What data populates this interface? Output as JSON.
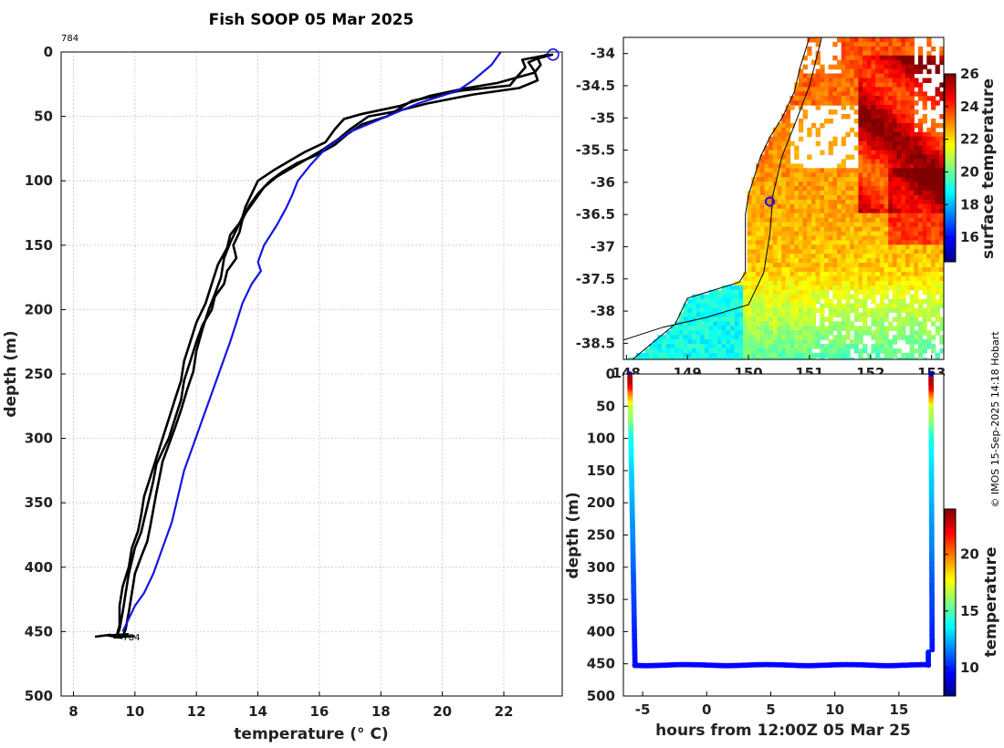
{
  "title": "Fish SOOP 05 Mar 2025",
  "copyright": "© IMOS 15-Sep-2025 14:18 Hobart",
  "colors": {
    "profile": "#000000",
    "climatology": "#1414e6",
    "marker": "#1414e6"
  },
  "chart_data": [
    {
      "id": "profile",
      "type": "line",
      "title": "Fish SOOP 05 Mar 2025",
      "xlabel": "temperature (° C)",
      "ylabel": "depth (m)",
      "xlim": [
        7.6,
        23.9
      ],
      "ylim": [
        500,
        0
      ],
      "xticks": [
        8,
        10,
        12,
        14,
        16,
        18,
        20,
        22
      ],
      "yticks": [
        0,
        50,
        100,
        150,
        200,
        250,
        300,
        350,
        400,
        450,
        500
      ],
      "cruise_label": "784",
      "end_label": "784",
      "surface_marker": {
        "temp": 23.6,
        "depth": 2
      },
      "series": [
        {
          "name": "profile-1",
          "color": "#000000",
          "points": [
            [
              23.5,
              2
            ],
            [
              22.6,
              6
            ],
            [
              22.7,
              12
            ],
            [
              22.4,
              20
            ],
            [
              22.2,
              26
            ],
            [
              20.6,
              30
            ],
            [
              19.0,
              38
            ],
            [
              18.2,
              50
            ],
            [
              17.4,
              56
            ],
            [
              16.9,
              64
            ],
            [
              16.5,
              72
            ],
            [
              15.9,
              80
            ],
            [
              15.3,
              86
            ],
            [
              14.8,
              93
            ],
            [
              14.4,
              100
            ],
            [
              14.0,
              110
            ],
            [
              13.7,
              120
            ],
            [
              13.5,
              130
            ],
            [
              13.4,
              140
            ],
            [
              13.2,
              150
            ],
            [
              13.3,
              160
            ],
            [
              13.0,
              170
            ],
            [
              12.9,
              180
            ],
            [
              12.6,
              190
            ],
            [
              12.5,
              200
            ],
            [
              12.2,
              212
            ],
            [
              12.0,
              225
            ],
            [
              11.8,
              240
            ],
            [
              11.6,
              255
            ],
            [
              11.5,
              270
            ],
            [
              11.3,
              285
            ],
            [
              11.1,
              300
            ],
            [
              10.9,
              310
            ],
            [
              10.7,
              320
            ],
            [
              10.6,
              333
            ],
            [
              10.5,
              343
            ],
            [
              10.4,
              353
            ],
            [
              10.3,
              363
            ],
            [
              10.2,
              373
            ],
            [
              10.0,
              385
            ],
            [
              9.9,
              395
            ],
            [
              9.8,
              405
            ],
            [
              9.7,
              420
            ],
            [
              9.6,
              435
            ],
            [
              9.5,
              448
            ],
            [
              9.4,
              454
            ]
          ]
        },
        {
          "name": "profile-2",
          "color": "#000000",
          "points": [
            [
              23.4,
              2
            ],
            [
              22.8,
              8
            ],
            [
              23.0,
              15
            ],
            [
              23.1,
              22
            ],
            [
              22.5,
              28
            ],
            [
              21.0,
              33
            ],
            [
              19.5,
              40
            ],
            [
              18.5,
              46
            ],
            [
              17.6,
              50
            ],
            [
              17.0,
              60
            ],
            [
              16.6,
              68
            ],
            [
              16.1,
              76
            ],
            [
              15.6,
              83
            ],
            [
              15.1,
              90
            ],
            [
              14.6,
              97
            ],
            [
              14.2,
              105
            ],
            [
              13.9,
              115
            ],
            [
              13.6,
              125
            ],
            [
              13.4,
              133
            ],
            [
              13.1,
              142
            ],
            [
              13.0,
              152
            ],
            [
              12.7,
              165
            ],
            [
              12.5,
              180
            ],
            [
              12.3,
              195
            ],
            [
              12.0,
              210
            ],
            [
              11.8,
              225
            ],
            [
              11.6,
              240
            ],
            [
              11.5,
              255
            ],
            [
              11.3,
              270
            ],
            [
              11.1,
              285
            ],
            [
              10.9,
              300
            ],
            [
              10.7,
              315
            ],
            [
              10.5,
              330
            ],
            [
              10.3,
              345
            ],
            [
              10.2,
              360
            ],
            [
              10.1,
              372
            ],
            [
              9.9,
              385
            ],
            [
              9.8,
              400
            ],
            [
              9.6,
              415
            ],
            [
              9.5,
              430
            ],
            [
              9.5,
              445
            ],
            [
              9.4,
              454
            ]
          ]
        },
        {
          "name": "profile-3",
          "color": "#000000",
          "points": [
            [
              23.6,
              2
            ],
            [
              23.1,
              5
            ],
            [
              23.2,
              10
            ],
            [
              23.0,
              16
            ],
            [
              21.8,
              24
            ],
            [
              20.8,
              28
            ],
            [
              19.6,
              34
            ],
            [
              18.6,
              42
            ],
            [
              17.4,
              48
            ],
            [
              16.8,
              52
            ],
            [
              16.5,
              60
            ],
            [
              16.2,
              70
            ],
            [
              15.5,
              78
            ],
            [
              15.0,
              85
            ],
            [
              14.5,
              92
            ],
            [
              14.0,
              100
            ],
            [
              13.8,
              110
            ],
            [
              13.6,
              120
            ],
            [
              13.5,
              128
            ],
            [
              13.3,
              138
            ],
            [
              13.1,
              148
            ],
            [
              12.9,
              160
            ],
            [
              12.8,
              175
            ],
            [
              12.6,
              188
            ],
            [
              12.4,
              200
            ],
            [
              12.2,
              215
            ],
            [
              12.0,
              232
            ],
            [
              11.9,
              248
            ],
            [
              11.7,
              262
            ],
            [
              11.5,
              278
            ],
            [
              11.3,
              292
            ],
            [
              11.1,
              305
            ],
            [
              10.9,
              318
            ],
            [
              10.8,
              330
            ],
            [
              10.7,
              342
            ],
            [
              10.6,
              355
            ],
            [
              10.5,
              368
            ],
            [
              10.4,
              380
            ],
            [
              10.2,
              392
            ],
            [
              10.0,
              405
            ],
            [
              9.9,
              420
            ],
            [
              9.8,
              435
            ],
            [
              9.7,
              448
            ],
            [
              9.6,
              454
            ]
          ]
        },
        {
          "name": "climatology",
          "color": "#1414e6",
          "points": [
            [
              21.9,
              0
            ],
            [
              21.6,
              10
            ],
            [
              21.0,
              22
            ],
            [
              20.5,
              30
            ],
            [
              19.2,
              40
            ],
            [
              18.0,
              52
            ],
            [
              17.0,
              62
            ],
            [
              16.2,
              75
            ],
            [
              15.7,
              88
            ],
            [
              15.3,
              100
            ],
            [
              15.1,
              112
            ],
            [
              14.9,
              122
            ],
            [
              14.6,
              135
            ],
            [
              14.2,
              150
            ],
            [
              14.0,
              163
            ],
            [
              14.1,
              170
            ],
            [
              13.8,
              180
            ],
            [
              13.5,
              195
            ],
            [
              13.3,
              210
            ],
            [
              13.1,
              225
            ],
            [
              12.8,
              245
            ],
            [
              12.5,
              265
            ],
            [
              12.2,
              285
            ],
            [
              11.9,
              305
            ],
            [
              11.6,
              325
            ],
            [
              11.4,
              345
            ],
            [
              11.2,
              365
            ],
            [
              10.9,
              385
            ],
            [
              10.6,
              405
            ],
            [
              10.3,
              420
            ],
            [
              10.0,
              430
            ],
            [
              9.8,
              440
            ],
            [
              9.6,
              450
            ]
          ]
        }
      ]
    },
    {
      "id": "map",
      "type": "heatmap",
      "colorbar_label": "surface temperature",
      "colorbar_range": [
        14.5,
        26
      ],
      "colorbar_ticks": [
        16,
        18,
        20,
        22,
        24,
        26
      ],
      "xlim": [
        147.95,
        153.2
      ],
      "ylim": [
        -38.75,
        -33.75
      ],
      "xticks": [
        148,
        149,
        150,
        151,
        152,
        153
      ],
      "xtick_labels": [
        "148",
        "149",
        "150",
        "151",
        "152",
        "153"
      ],
      "yticks": [
        -34,
        -34.5,
        -35,
        -35.5,
        -36,
        -36.5,
        -37,
        -37.5,
        -38,
        -38.5
      ],
      "ytick_labels": [
        "-34",
        "-34.5",
        "-35",
        "-35.5",
        "-36",
        "-36.5",
        "-37",
        "-37.5",
        "-38",
        "-38.5"
      ],
      "location": {
        "lon": 150.35,
        "lat": -36.3
      }
    },
    {
      "id": "section",
      "type": "scatter",
      "xlabel": "hours from 12:00Z 05 Mar 25",
      "ylabel": "depth (m)",
      "colorbar_label": "temperature",
      "colorbar_range": [
        7.5,
        24
      ],
      "colorbar_ticks": [
        10,
        15,
        20
      ],
      "xlim": [
        -6.5,
        18.5
      ],
      "ylim": [
        500,
        0
      ],
      "xticks": [
        -5,
        0,
        5,
        10,
        15
      ],
      "yticks": [
        0,
        50,
        100,
        150,
        200,
        250,
        300,
        350,
        400,
        450,
        500
      ],
      "descent": {
        "hour": -6.0,
        "max_depth": 452
      },
      "bottom": {
        "start_hour": -5.6,
        "end_hour": 17.2,
        "depth": 452
      },
      "ascent": {
        "hour": 17.6
      },
      "surface_temp": 23.5,
      "bottom_temp": 9.5
    }
  ]
}
